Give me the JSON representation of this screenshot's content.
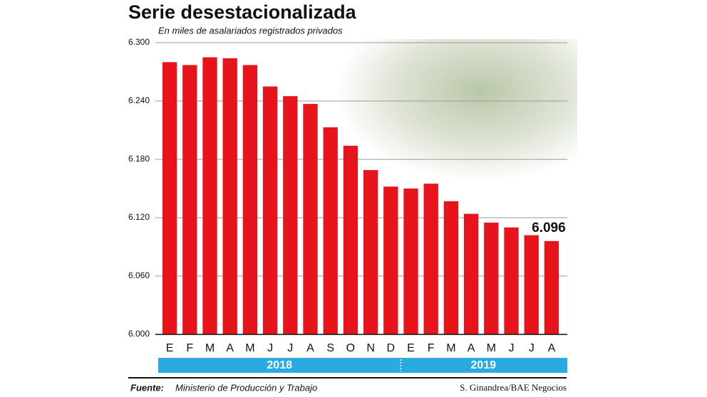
{
  "chart_data": {
    "type": "bar",
    "title": "Serie desestacionalizada",
    "subtitle": "En miles de asalariados registrados privados",
    "categories": [
      "E",
      "F",
      "M",
      "A",
      "M",
      "J",
      "J",
      "A",
      "S",
      "O",
      "N",
      "D",
      "E",
      "F",
      "M",
      "A",
      "M",
      "J",
      "J",
      "A"
    ],
    "values": [
      6280,
      6277,
      6285,
      6284,
      6277,
      6255,
      6245,
      6237,
      6213,
      6194,
      6169,
      6152,
      6150,
      6155,
      6137,
      6124,
      6115,
      6110,
      6102,
      6096
    ],
    "value_labels": [
      null,
      null,
      null,
      null,
      null,
      null,
      null,
      null,
      null,
      null,
      null,
      null,
      null,
      null,
      null,
      null,
      null,
      null,
      null,
      "6.096"
    ],
    "color": "#e8141b",
    "years": [
      "2018",
      "2019"
    ],
    "year_band_color": "#29abe2",
    "ylim": [
      6000,
      6300
    ],
    "yticks": [
      {
        "value": 6000,
        "label": "6.000"
      },
      {
        "value": 6060,
        "label": "6.060"
      },
      {
        "value": 6120,
        "label": "6.120"
      },
      {
        "value": 6180,
        "label": "6.180"
      },
      {
        "value": 6240,
        "label": "6.240"
      },
      {
        "value": 6300,
        "label": "6.300"
      }
    ],
    "grid": true,
    "source_label": "Fuente:",
    "source": "Ministerio de Producción y Trabajo",
    "credit": "S. Ginandrea/BAE Negocios"
  }
}
